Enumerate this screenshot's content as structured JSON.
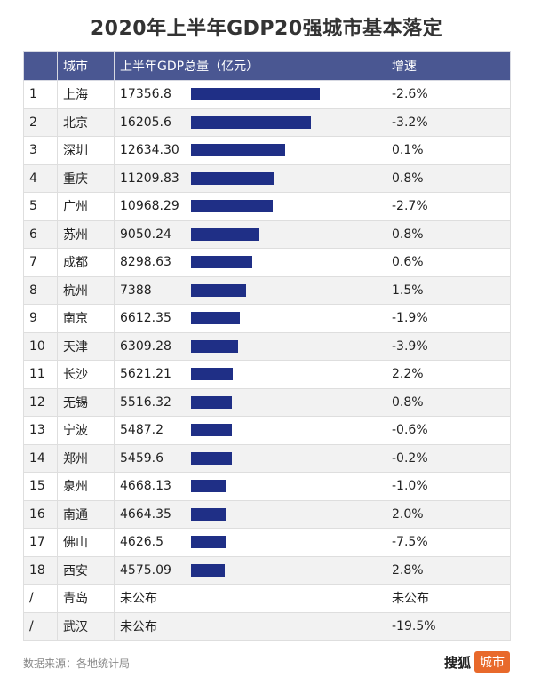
{
  "title": "2020年上半年GDP20强城市基本落定",
  "headers": {
    "rank": "",
    "city": "城市",
    "gdp": "上半年GDP总量（亿元）",
    "growth": "增速"
  },
  "rows": [
    {
      "rank": "1",
      "city": "上海",
      "gdp": "17356.8",
      "growth": "-2.6%"
    },
    {
      "rank": "2",
      "city": "北京",
      "gdp": "16205.6",
      "growth": "-3.2%"
    },
    {
      "rank": "3",
      "city": "深圳",
      "gdp": "12634.30",
      "growth": "0.1%"
    },
    {
      "rank": "4",
      "city": "重庆",
      "gdp": "11209.83",
      "growth": "0.8%"
    },
    {
      "rank": "5",
      "city": "广州",
      "gdp": "10968.29",
      "growth": "-2.7%"
    },
    {
      "rank": "6",
      "city": "苏州",
      "gdp": "9050.24",
      "growth": "0.8%"
    },
    {
      "rank": "7",
      "city": "成都",
      "gdp": "8298.63",
      "growth": "0.6%"
    },
    {
      "rank": "8",
      "city": "杭州",
      "gdp": "7388",
      "growth": "1.5%"
    },
    {
      "rank": "9",
      "city": "南京",
      "gdp": "6612.35",
      "growth": "-1.9%"
    },
    {
      "rank": "10",
      "city": "天津",
      "gdp": "6309.28",
      "growth": "-3.9%"
    },
    {
      "rank": "11",
      "city": "长沙",
      "gdp": "5621.21",
      "growth": "2.2%"
    },
    {
      "rank": "12",
      "city": "无锡",
      "gdp": "5516.32",
      "growth": "0.8%"
    },
    {
      "rank": "13",
      "city": "宁波",
      "gdp": "5487.2",
      "growth": "-0.6%"
    },
    {
      "rank": "14",
      "city": "郑州",
      "gdp": "5459.6",
      "growth": "-0.2%"
    },
    {
      "rank": "15",
      "city": "泉州",
      "gdp": "4668.13",
      "growth": "-1.0%"
    },
    {
      "rank": "16",
      "city": "南通",
      "gdp": "4664.35",
      "growth": "2.0%"
    },
    {
      "rank": "17",
      "city": "佛山",
      "gdp": "4626.5",
      "growth": "-7.5%"
    },
    {
      "rank": "18",
      "city": "西安",
      "gdp": "4575.09",
      "growth": "2.8%"
    },
    {
      "rank": "/",
      "city": "青岛",
      "gdp": "未公布",
      "growth": "未公布"
    },
    {
      "rank": "/",
      "city": "武汉",
      "gdp": "未公布",
      "growth": "-19.5%"
    }
  ],
  "chart_data": {
    "type": "bar",
    "title": "2020年上半年GDP20强城市基本落定",
    "categories": [
      "上海",
      "北京",
      "深圳",
      "重庆",
      "广州",
      "苏州",
      "成都",
      "杭州",
      "南京",
      "天津",
      "长沙",
      "无锡",
      "宁波",
      "郑州",
      "泉州",
      "南通",
      "佛山",
      "西安",
      "青岛",
      "武汉"
    ],
    "values": [
      17356.8,
      16205.6,
      12634.3,
      11209.83,
      10968.29,
      9050.24,
      8298.63,
      7388,
      6612.35,
      6309.28,
      5621.21,
      5516.32,
      5487.2,
      5459.6,
      4668.13,
      4664.35,
      4626.5,
      4575.09,
      null,
      null
    ],
    "growth": [
      "-2.6%",
      "-3.2%",
      "0.1%",
      "0.8%",
      "-2.7%",
      "0.8%",
      "0.6%",
      "1.5%",
      "-1.9%",
      "-3.9%",
      "2.2%",
      "0.8%",
      "-0.6%",
      "-0.2%",
      "-1.0%",
      "2.0%",
      "-7.5%",
      "2.8%",
      "未公布",
      "-19.5%"
    ],
    "xlabel": "",
    "ylabel": "上半年GDP总量（亿元）",
    "bar_color": "#1f2f86"
  },
  "footer": {
    "source": "数据来源：各地统计局",
    "brand_name": "搜狐",
    "brand_tag": "城市"
  },
  "colors": {
    "header_bg": "#4a5792",
    "bar": "#1f2f86",
    "brand_accent": "#e8692b"
  }
}
